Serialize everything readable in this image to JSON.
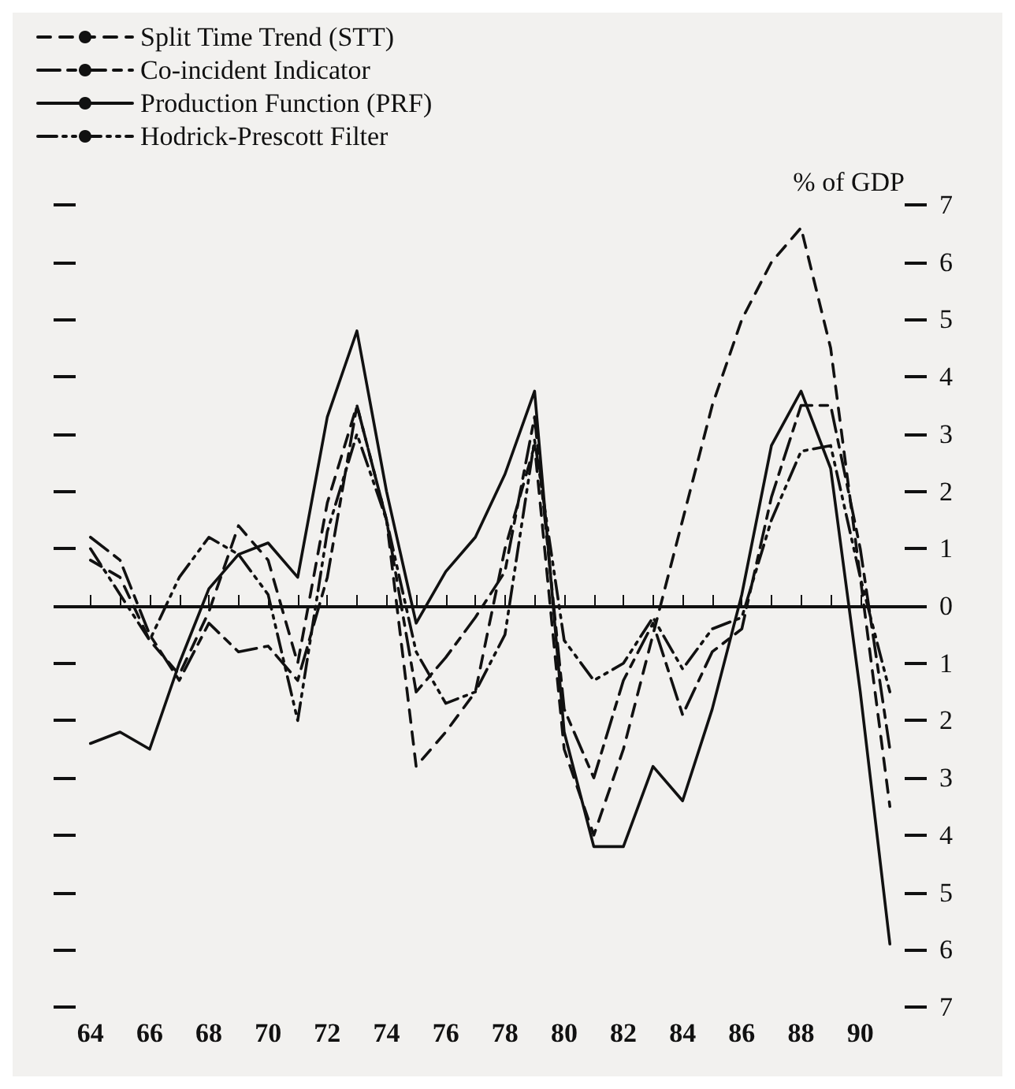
{
  "chart_data": {
    "type": "line",
    "ylabel": "% of GDP",
    "legend": "top left",
    "marker": "none",
    "grid": false,
    "x": [
      64,
      65,
      66,
      67,
      68,
      69,
      70,
      71,
      72,
      73,
      74,
      75,
      76,
      77,
      78,
      79,
      80,
      81,
      82,
      83,
      84,
      85,
      86,
      87,
      88,
      89,
      90,
      91
    ],
    "xlim": [
      63.5,
      91.5
    ],
    "xticks": [
      64,
      {
        "value": 65,
        "label": null
      },
      66,
      {
        "value": 67,
        "label": null
      },
      68,
      {
        "value": 69,
        "label": null
      },
      70,
      {
        "value": 71,
        "label": null
      },
      72,
      {
        "value": 73,
        "label": null
      },
      74,
      {
        "value": 75,
        "label": null
      },
      76,
      {
        "value": 77,
        "label": null
      },
      78,
      {
        "value": 79,
        "label": null
      },
      80,
      {
        "value": 81,
        "label": null
      },
      82,
      {
        "value": 83,
        "label": null
      },
      84,
      {
        "value": 85,
        "label": null
      },
      86,
      {
        "value": 87,
        "label": null
      },
      88,
      {
        "value": 89,
        "label": null
      },
      90
    ],
    "ylim": [
      -7,
      7
    ],
    "yticks": [
      {
        "value": -7,
        "label": "7"
      },
      {
        "value": -6,
        "label": "6"
      },
      {
        "value": -5,
        "label": "5"
      },
      {
        "value": -4,
        "label": "4"
      },
      {
        "value": -3,
        "label": "3"
      },
      {
        "value": -2,
        "label": "2"
      },
      {
        "value": -1,
        "label": "1"
      },
      0,
      1,
      2,
      3,
      4,
      5,
      6,
      7
    ],
    "ref_lines": [
      {
        "axis": "y",
        "value": 0,
        "label": null,
        "color": "#111111",
        "line_style": "solid"
      }
    ],
    "series": [
      {
        "name": "Split Time Trend (STT)",
        "color": "#111111",
        "line_style": "dashed",
        "values": [
          0.8,
          0.5,
          -0.6,
          -1.2,
          -0.1,
          1.4,
          0.8,
          -1.0,
          1.8,
          3.5,
          1.5,
          -2.8,
          -2.2,
          -1.5,
          1.0,
          2.8,
          -2.5,
          -4.0,
          -2.5,
          -0.5,
          1.5,
          3.5,
          5.0,
          6.0,
          6.6,
          4.5,
          0.5,
          -3.5
        ]
      },
      {
        "name": "Co-incident Indicator",
        "color": "#111111",
        "line_style": "longdash",
        "values": [
          1.2,
          0.8,
          -0.5,
          -1.3,
          -0.3,
          -0.8,
          -0.7,
          -1.3,
          0.5,
          3.5,
          1.5,
          -1.5,
          -0.9,
          -0.2,
          0.6,
          3.3,
          -1.8,
          -3.0,
          -1.3,
          -0.3,
          -1.9,
          -0.8,
          -0.4,
          1.9,
          3.5,
          3.5,
          1.0,
          -2.5
        ]
      },
      {
        "name": "Production Function (PRF)",
        "color": "#111111",
        "line_style": "solid",
        "values": [
          -2.4,
          -2.2,
          -2.5,
          -1.0,
          0.3,
          0.9,
          1.1,
          0.5,
          3.3,
          4.8,
          2.0,
          -0.3,
          0.6,
          1.2,
          2.3,
          3.75,
          -2.2,
          -4.2,
          -4.2,
          -2.8,
          -3.4,
          -1.8,
          0.2,
          2.8,
          3.75,
          2.4,
          -1.5,
          -5.9
        ]
      },
      {
        "name": "Hodrick-Prescott Filter",
        "color": "#111111",
        "line_style": "dashdot",
        "values": [
          1.0,
          0.2,
          -0.6,
          0.5,
          1.2,
          0.9,
          0.2,
          -2.0,
          1.3,
          3.0,
          1.5,
          -0.8,
          -1.7,
          -1.5,
          -0.5,
          2.9,
          -0.6,
          -1.3,
          -1.0,
          -0.2,
          -1.1,
          -0.4,
          -0.2,
          1.5,
          2.7,
          2.8,
          0.5,
          -1.5
        ]
      }
    ]
  }
}
